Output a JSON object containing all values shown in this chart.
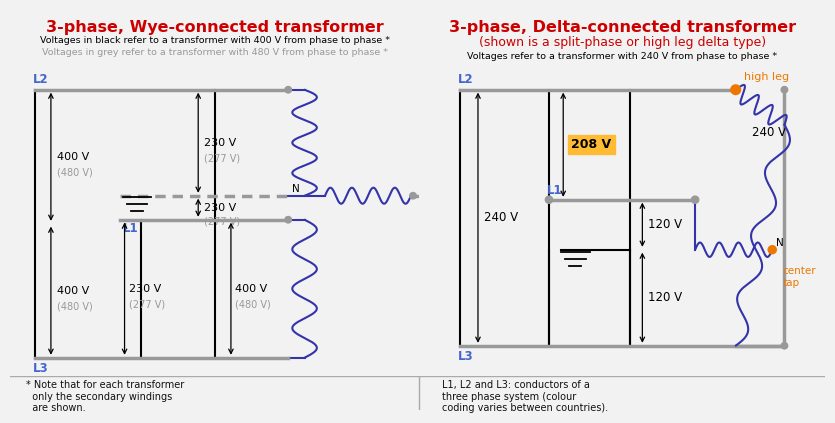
{
  "bg_color": "#f2f2f2",
  "div_color": "#aaaaaa",
  "left": {
    "title": "3-phase, Wye-connected transformer",
    "sub1": "Voltages in black refer to a transformer with 400 V from phase to phase *",
    "sub2": "Voltages in grey refer to a transformer with 480 V from phase to phase *",
    "title_color": "#cc0000",
    "sub1_color": "#000000",
    "sub2_color": "#999999",
    "wire_color": "#3333aa",
    "bus_color": "#999999",
    "black": "#000000",
    "grey_text": "#999999"
  },
  "right": {
    "title": "3-phase, Delta-connected transformer",
    "sub_red": "(shown is a split-phase or high leg delta type)",
    "sub2": "Voltages refer to a transformer with 240 V from phase to phase *",
    "title_color": "#cc0000",
    "wire_color": "#3333aa",
    "bus_color": "#999999",
    "black": "#000000",
    "orange": "#ee7700"
  },
  "footer_left": "* Note that for each transformer\n  only the secondary windings\n  are shown.",
  "footer_right": "L1, L2 and L3: conductors of a\nthree phase system (colour\ncoding varies between countries)."
}
